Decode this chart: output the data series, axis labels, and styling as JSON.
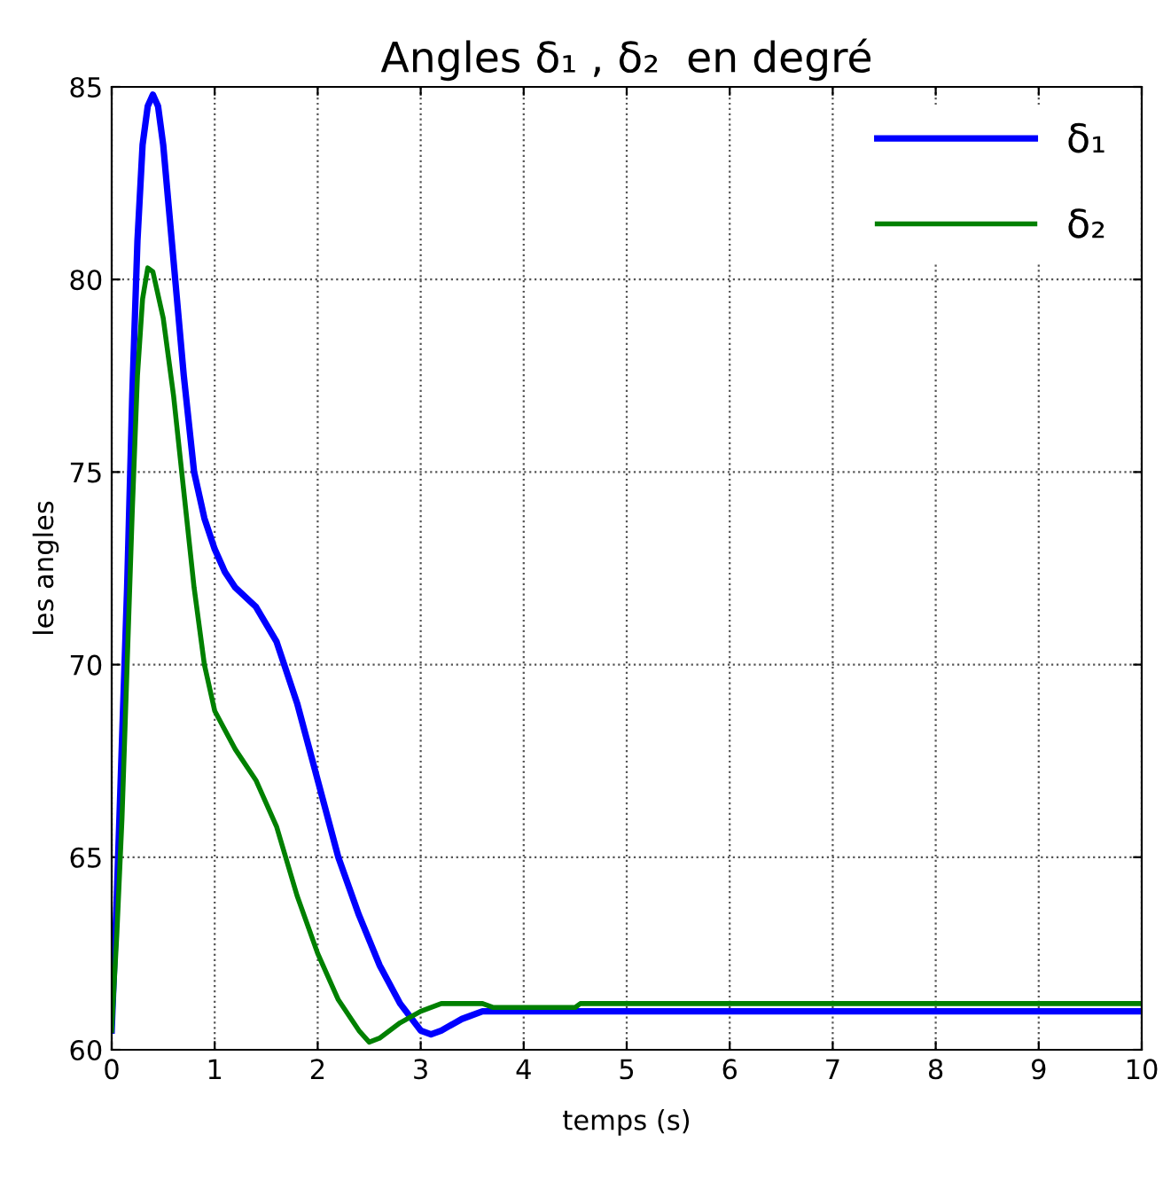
{
  "chart_data": {
    "type": "line",
    "title": "Angles δ₁ , δ₂  en degré",
    "xlabel": "temps (s)",
    "ylabel": "les angles",
    "xlim": [
      0,
      10
    ],
    "xticks": [
      0,
      1,
      2,
      3,
      4,
      5,
      6,
      7,
      8,
      9,
      10
    ],
    "ylim": [
      60,
      85
    ],
    "yticks": [
      60,
      65,
      70,
      75,
      80,
      85
    ],
    "grid": true,
    "legend": "top right",
    "line_style": "solid",
    "series": [
      {
        "name": "δ₁",
        "color": "#0000ff",
        "x": [
          0,
          0.05,
          0.1,
          0.15,
          0.2,
          0.25,
          0.3,
          0.35,
          0.4,
          0.45,
          0.5,
          0.6,
          0.7,
          0.8,
          0.9,
          1.0,
          1.1,
          1.2,
          1.4,
          1.6,
          1.8,
          2.0,
          2.2,
          2.4,
          2.6,
          2.8,
          3.0,
          3.1,
          3.2,
          3.4,
          3.6,
          4,
          10
        ],
        "values": [
          60.5,
          64,
          68,
          72,
          77,
          81,
          83.5,
          84.5,
          84.8,
          84.5,
          83.5,
          80.5,
          77.5,
          75,
          73.8,
          73,
          72.4,
          72,
          71.5,
          70.6,
          69,
          67,
          65,
          63.5,
          62.2,
          61.2,
          60.5,
          60.4,
          60.5,
          60.8,
          61.0,
          61.0,
          61.0
        ]
      },
      {
        "name": "δ₂",
        "color": "#008000",
        "x": [
          0,
          0.05,
          0.1,
          0.15,
          0.2,
          0.25,
          0.3,
          0.35,
          0.4,
          0.5,
          0.6,
          0.7,
          0.8,
          0.9,
          1.0,
          1.2,
          1.4,
          1.6,
          1.8,
          2.0,
          2.2,
          2.4,
          2.5,
          2.6,
          2.8,
          3.0,
          3.2,
          3.6,
          3.7,
          4.5,
          4.55,
          10
        ],
        "values": [
          60.5,
          63,
          66,
          70,
          74,
          77.5,
          79.5,
          80.3,
          80.2,
          79,
          77,
          74.5,
          72,
          70,
          68.8,
          67.8,
          67,
          65.8,
          64,
          62.5,
          61.3,
          60.5,
          60.2,
          60.3,
          60.7,
          61.0,
          61.2,
          61.2,
          61.1,
          61.1,
          61.2,
          61.2
        ]
      }
    ]
  }
}
